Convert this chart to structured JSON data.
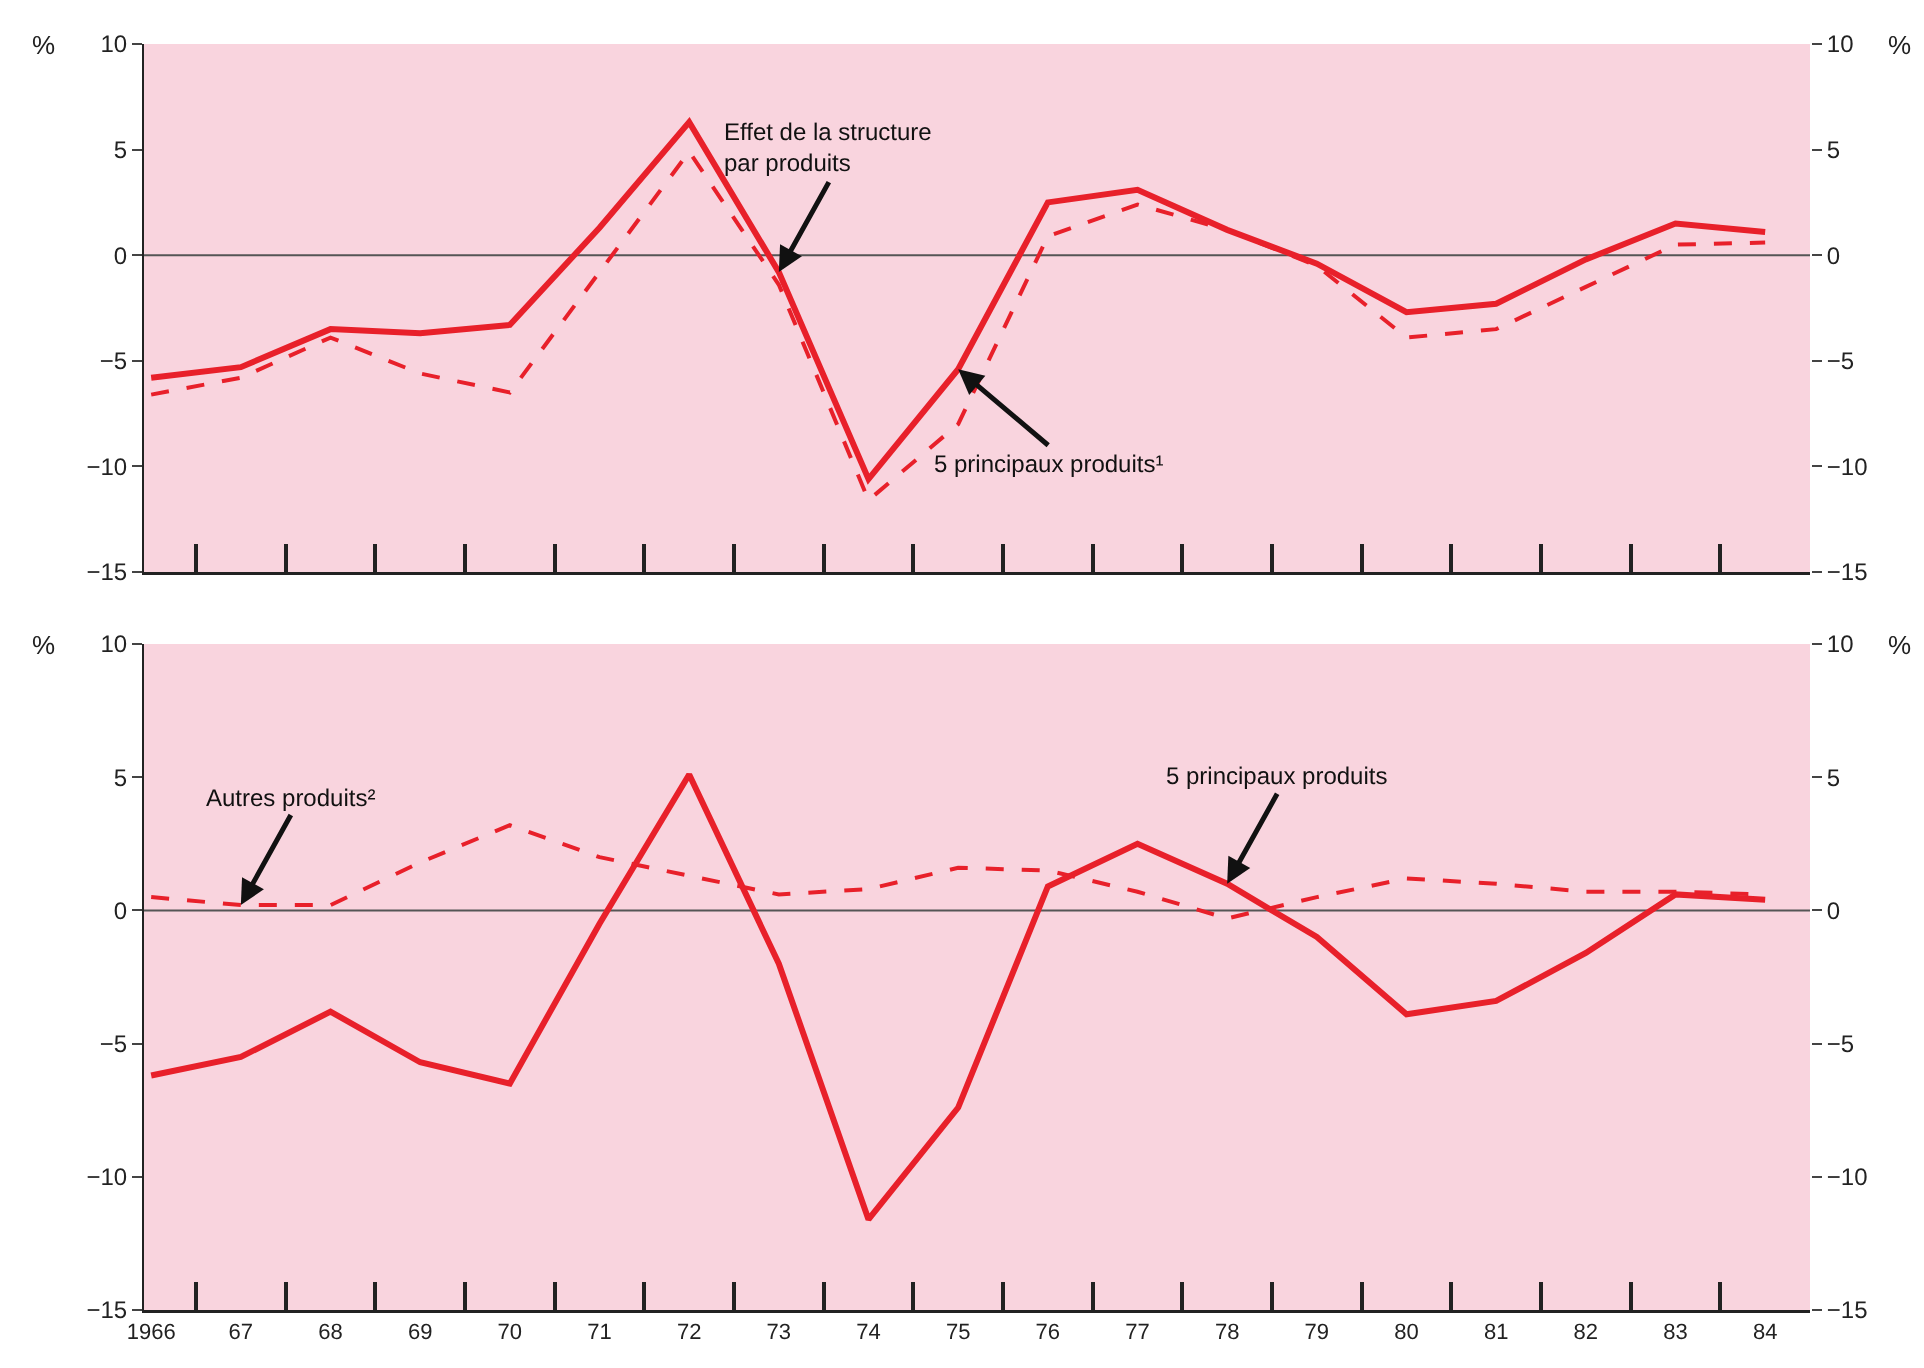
{
  "chart_data": [
    {
      "type": "line",
      "categories": [
        "1966",
        "67",
        "68",
        "69",
        "70",
        "71",
        "72",
        "73",
        "74",
        "75",
        "76",
        "77",
        "78",
        "79",
        "80",
        "81",
        "82",
        "83",
        "84"
      ],
      "series": [
        {
          "color": "#e8202a",
          "line_style": "solid",
          "values": [
            -5.8,
            -5.3,
            -3.5,
            -3.7,
            -3.3,
            1.3,
            6.3,
            -0.8,
            -10.6,
            -5.4,
            2.5,
            3.1,
            1.2,
            -0.4,
            -2.7,
            -2.3,
            -0.2,
            1.5,
            1.1
          ]
        },
        {
          "color": "#e8202a",
          "line_style": "dashed",
          "values": [
            -6.6,
            -5.8,
            -3.9,
            -5.6,
            -6.5,
            -0.8,
            4.9,
            -1.4,
            -11.6,
            -8.0,
            0.9,
            2.4,
            1.2,
            -0.5,
            -3.9,
            -3.5,
            -1.5,
            0.5,
            0.6
          ]
        }
      ],
      "ylabel": "%",
      "y2label": "%",
      "ylim": [
        -15,
        10
      ],
      "yticks": [
        10,
        5,
        0,
        {
          "value": -5,
          "label": "−5"
        },
        {
          "value": -10,
          "label": "−10"
        },
        {
          "value": -15,
          "label": "−15"
        }
      ],
      "y2lim": [
        -15,
        10
      ],
      "y2ticks": [
        10,
        5,
        0,
        {
          "value": -5,
          "label": "−5"
        },
        {
          "value": -10,
          "label": "−10"
        },
        {
          "value": -15,
          "label": "−15"
        }
      ],
      "tick_labels": "y",
      "grid": false,
      "marker": "none",
      "ref_lines": [
        {
          "axis": "y",
          "value": 0,
          "color": "#555555"
        }
      ],
      "annotations": [
        {
          "text": "Effet de la structure\npar produits",
          "x": "73",
          "y": -0.8
        },
        {
          "text": "5 principaux produits¹",
          "x": "75",
          "y": -5.4
        }
      ]
    },
    {
      "type": "line",
      "categories": [
        "1966",
        "67",
        "68",
        "69",
        "70",
        "71",
        "72",
        "73",
        "74",
        "75",
        "76",
        "77",
        "78",
        "79",
        "80",
        "81",
        "82",
        "83",
        "84"
      ],
      "series": [
        {
          "color": "#e8202a",
          "line_style": "solid",
          "values": [
            -6.2,
            -5.5,
            -3.8,
            -5.7,
            -6.5,
            -0.5,
            5.1,
            -2.0,
            -11.6,
            -7.4,
            0.9,
            2.5,
            1.0,
            -1.0,
            -3.9,
            -3.4,
            -1.6,
            0.6,
            0.4
          ]
        },
        {
          "color": "#e8202a",
          "line_style": "dashed",
          "values": [
            0.5,
            0.2,
            0.2,
            1.8,
            3.2,
            2.0,
            1.3,
            0.6,
            0.8,
            1.6,
            1.5,
            0.7,
            -0.3,
            0.5,
            1.2,
            1.0,
            0.7,
            0.7,
            0.6
          ]
        }
      ],
      "ylabel": "%",
      "y2label": "%",
      "ylim": [
        -15,
        10
      ],
      "yticks": [
        10,
        5,
        0,
        {
          "value": -5,
          "label": "−5"
        },
        {
          "value": -10,
          "label": "−10"
        },
        {
          "value": -15,
          "label": "−15"
        }
      ],
      "y2lim": [
        -15,
        10
      ],
      "y2ticks": [
        10,
        5,
        0,
        {
          "value": -5,
          "label": "−5"
        },
        {
          "value": -10,
          "label": "−10"
        },
        {
          "value": -15,
          "label": "−15"
        }
      ],
      "grid": false,
      "marker": "none",
      "ref_lines": [
        {
          "axis": "y",
          "value": 0,
          "color": "#555555"
        }
      ],
      "annotations": [
        {
          "text": "Autres produits²",
          "x": "67",
          "y": 0.2
        },
        {
          "text": "5 principaux produits",
          "x": "78",
          "y": 1.0
        }
      ]
    }
  ]
}
